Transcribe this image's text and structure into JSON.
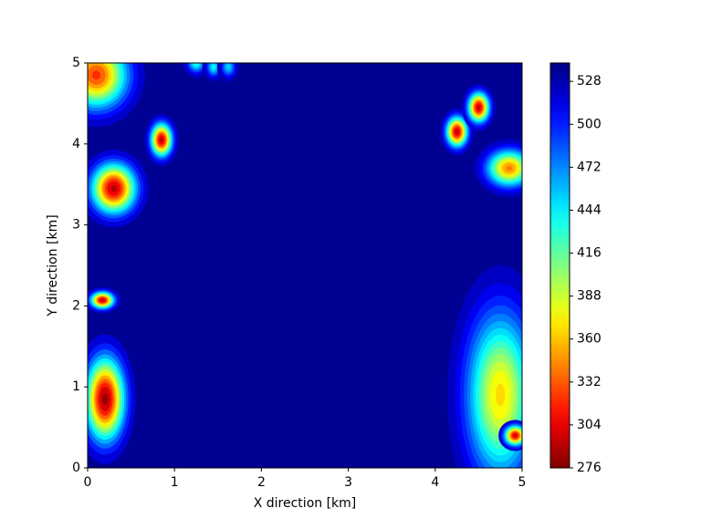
{
  "chart_data": {
    "type": "contourf",
    "xlabel": "X direction [km]",
    "ylabel": "Y direction [km]",
    "xlim": [
      0,
      5
    ],
    "ylim": [
      0,
      5
    ],
    "xticks": [
      0,
      1,
      2,
      3,
      4,
      5
    ],
    "yticks": [
      0,
      1,
      2,
      3,
      4,
      5
    ],
    "colormap": "jet_r",
    "clim": [
      276,
      540
    ],
    "cticks": [
      276,
      304,
      332,
      360,
      388,
      416,
      444,
      472,
      500,
      528
    ],
    "background_value": 535,
    "features": [
      {
        "x": 0.1,
        "y": 4.85,
        "value": 320,
        "rx": 0.35,
        "ry": 0.4
      },
      {
        "x": 0.3,
        "y": 3.45,
        "value": 288,
        "rx": 0.25,
        "ry": 0.3
      },
      {
        "x": 0.85,
        "y": 4.05,
        "value": 290,
        "rx": 0.12,
        "ry": 0.2
      },
      {
        "x": 1.25,
        "y": 5.0,
        "value": 430,
        "rx": 0.1,
        "ry": 0.12
      },
      {
        "x": 1.45,
        "y": 4.95,
        "value": 440,
        "rx": 0.08,
        "ry": 0.12
      },
      {
        "x": 1.62,
        "y": 4.95,
        "value": 450,
        "rx": 0.08,
        "ry": 0.12
      },
      {
        "x": 0.17,
        "y": 2.07,
        "value": 290,
        "rx": 0.13,
        "ry": 0.1
      },
      {
        "x": 0.2,
        "y": 0.85,
        "value": 280,
        "rx": 0.22,
        "ry": 0.5
      },
      {
        "x": 4.25,
        "y": 4.15,
        "value": 290,
        "rx": 0.12,
        "ry": 0.18
      },
      {
        "x": 4.5,
        "y": 4.45,
        "value": 292,
        "rx": 0.12,
        "ry": 0.18
      },
      {
        "x": 4.85,
        "y": 3.7,
        "value": 340,
        "rx": 0.25,
        "ry": 0.22
      },
      {
        "x": 4.75,
        "y": 0.9,
        "value": 365,
        "rx": 0.38,
        "ry": 1.0
      },
      {
        "x": 4.92,
        "y": 0.4,
        "value": 295,
        "rx": 0.12,
        "ry": 0.12
      }
    ]
  }
}
